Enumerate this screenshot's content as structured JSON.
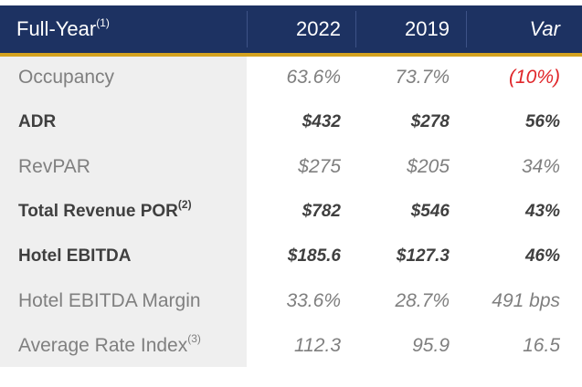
{
  "header": {
    "label": "Full-Year",
    "label_sup": "(1)",
    "col_2022": "2022",
    "col_2019": "2019",
    "col_var": "Var"
  },
  "rows": [
    {
      "label": "Occupancy",
      "sup": "",
      "v2022": "63.6%",
      "v2019": "73.7%",
      "var": "(10%)"
    },
    {
      "label": "ADR",
      "sup": "",
      "v2022": "$432",
      "v2019": "$278",
      "var": "56%"
    },
    {
      "label": "RevPAR",
      "sup": "",
      "v2022": "$275",
      "v2019": "$205",
      "var": "34%"
    },
    {
      "label": "Total Revenue POR",
      "sup": "(2)",
      "v2022": "$782",
      "v2019": "$546",
      "var": "43%"
    },
    {
      "label": "Hotel EBITDA",
      "sup": "",
      "v2022": "$185.6",
      "v2019": "$127.3",
      "var": "46%"
    },
    {
      "label": "Hotel EBITDA Margin",
      "sup": "",
      "v2022": "33.6%",
      "v2019": "28.7%",
      "var": "491 bps"
    },
    {
      "label": "Average Rate Index",
      "sup": "(3)",
      "v2022": "112.3",
      "v2019": "95.9",
      "var": "16.5"
    }
  ],
  "colors": {
    "header_bg": "#1d3262",
    "header_accent": "#d4a21f",
    "negative": "#e0262a"
  }
}
